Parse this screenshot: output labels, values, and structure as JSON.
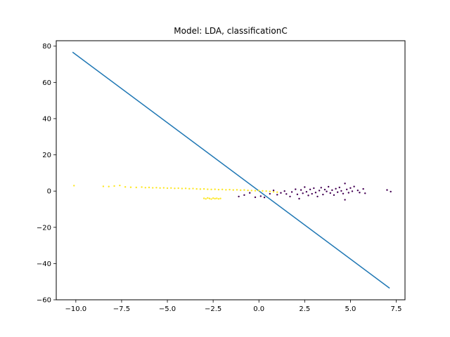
{
  "chart_data": {
    "type": "scatter",
    "title": "Model: LDA, classificationC",
    "xlabel": "",
    "ylabel": "",
    "xlim": [
      -11.07,
      7.98
    ],
    "ylim": [
      -60,
      83
    ],
    "xticks": [
      -10.0,
      -7.5,
      -5.0,
      -2.5,
      0.0,
      2.5,
      5.0,
      7.5
    ],
    "yticks": [
      -60,
      -40,
      -20,
      0,
      20,
      40,
      60,
      80
    ],
    "xtick_labels": [
      "−10.0",
      "−7.5",
      "−5.0",
      "−2.5",
      "0.0",
      "2.5",
      "5.0",
      "7.5"
    ],
    "ytick_labels": [
      "−60",
      "−40",
      "−20",
      "0",
      "20",
      "40",
      "60",
      "80"
    ],
    "grid": false,
    "legend": "none",
    "colors": {
      "class_0": "#440154",
      "class_1": "#fde725",
      "boundary": "#1f77b4"
    },
    "series": [
      {
        "type": "line",
        "x": [
          -10.18,
          7.14
        ],
        "y": [
          76.7,
          -53.6
        ]
      },
      {
        "type": "scatter",
        "class": 1,
        "points": [
          [
            -10.1,
            3.0
          ],
          [
            -8.5,
            2.6
          ],
          [
            -8.2,
            2.5
          ],
          [
            -7.9,
            2.8
          ],
          [
            -7.6,
            3.1
          ],
          [
            -7.3,
            2.3
          ],
          [
            -7.0,
            2.1
          ],
          [
            -6.7,
            2.0
          ],
          [
            -6.4,
            2.2
          ],
          [
            -6.2,
            1.9
          ],
          [
            -6.0,
            2.0
          ],
          [
            -5.8,
            1.8
          ],
          [
            -5.6,
            1.9
          ],
          [
            -5.4,
            1.7
          ],
          [
            -5.2,
            1.8
          ],
          [
            -5.0,
            1.6
          ],
          [
            -4.8,
            1.7
          ],
          [
            -4.6,
            1.5
          ],
          [
            -4.4,
            1.6
          ],
          [
            -4.2,
            1.4
          ],
          [
            -4.0,
            1.5
          ],
          [
            -3.8,
            1.3
          ],
          [
            -3.6,
            1.4
          ],
          [
            -3.4,
            1.2
          ],
          [
            -3.2,
            1.1
          ],
          [
            -3.0,
            1.2
          ],
          [
            -2.8,
            1.0
          ],
          [
            -2.6,
            0.9
          ],
          [
            -2.4,
            1.0
          ],
          [
            -2.2,
            0.8
          ],
          [
            -2.0,
            0.9
          ],
          [
            -1.8,
            0.7
          ],
          [
            -1.6,
            0.8
          ],
          [
            -1.4,
            0.6
          ],
          [
            -1.2,
            0.7
          ],
          [
            -1.0,
            0.5
          ],
          [
            -0.8,
            0.6
          ],
          [
            -0.6,
            0.4
          ],
          [
            -0.4,
            0.3
          ],
          [
            -0.2,
            0.2
          ],
          [
            0.0,
            0.3
          ],
          [
            0.2,
            0.1
          ],
          [
            0.4,
            0.0
          ],
          [
            0.6,
            -0.2
          ],
          [
            0.8,
            -0.4
          ],
          [
            1.0,
            -0.6
          ],
          [
            -3.0,
            -4.0
          ],
          [
            -2.9,
            -4.3
          ],
          [
            -2.8,
            -3.8
          ],
          [
            -2.7,
            -4.1
          ],
          [
            -2.6,
            -4.4
          ],
          [
            -2.5,
            -3.9
          ],
          [
            -2.4,
            -4.2
          ],
          [
            -2.3,
            -4.0
          ],
          [
            -2.2,
            -4.3
          ],
          [
            -2.1,
            -4.1
          ]
        ]
      },
      {
        "type": "scatter",
        "class": 0,
        "points": [
          [
            -1.1,
            -3.0
          ],
          [
            -0.8,
            -2.2
          ],
          [
            -0.5,
            -1.0
          ],
          [
            -0.2,
            -3.4
          ],
          [
            0.1,
            -2.8
          ],
          [
            0.3,
            -3.5
          ],
          [
            0.6,
            -1.5
          ],
          [
            0.8,
            0.4
          ],
          [
            1.0,
            -2.0
          ],
          [
            1.2,
            -1.0
          ],
          [
            1.4,
            0.0
          ],
          [
            1.5,
            -1.6
          ],
          [
            1.7,
            -3.0
          ],
          [
            1.8,
            -0.5
          ],
          [
            2.0,
            1.0
          ],
          [
            2.1,
            -1.8
          ],
          [
            2.2,
            -4.2
          ],
          [
            2.3,
            0.6
          ],
          [
            2.4,
            -1.2
          ],
          [
            2.5,
            2.2
          ],
          [
            2.6,
            -0.4
          ],
          [
            2.7,
            -2.4
          ],
          [
            2.8,
            0.9
          ],
          [
            2.9,
            -1.5
          ],
          [
            3.0,
            1.6
          ],
          [
            3.1,
            -0.8
          ],
          [
            3.2,
            -3.0
          ],
          [
            3.3,
            0.3
          ],
          [
            3.4,
            1.9
          ],
          [
            3.5,
            -1.9
          ],
          [
            3.6,
            0.8
          ],
          [
            3.7,
            -0.2
          ],
          [
            3.8,
            2.4
          ],
          [
            3.9,
            -1.1
          ],
          [
            4.0,
            0.5
          ],
          [
            4.1,
            -2.2
          ],
          [
            4.2,
            1.3
          ],
          [
            4.3,
            -0.6
          ],
          [
            4.4,
            2.0
          ],
          [
            4.5,
            0.1
          ],
          [
            4.6,
            -1.4
          ],
          [
            4.7,
            4.2
          ],
          [
            4.8,
            0.9
          ],
          [
            4.9,
            -0.9
          ],
          [
            5.0,
            1.7
          ],
          [
            5.1,
            -0.1
          ],
          [
            5.2,
            2.5
          ],
          [
            5.4,
            0.4
          ],
          [
            5.5,
            -0.8
          ],
          [
            5.7,
            1.2
          ],
          [
            5.8,
            -1.2
          ],
          [
            7.0,
            0.6
          ],
          [
            7.2,
            -0.3
          ],
          [
            4.7,
            -4.8
          ]
        ]
      }
    ]
  }
}
